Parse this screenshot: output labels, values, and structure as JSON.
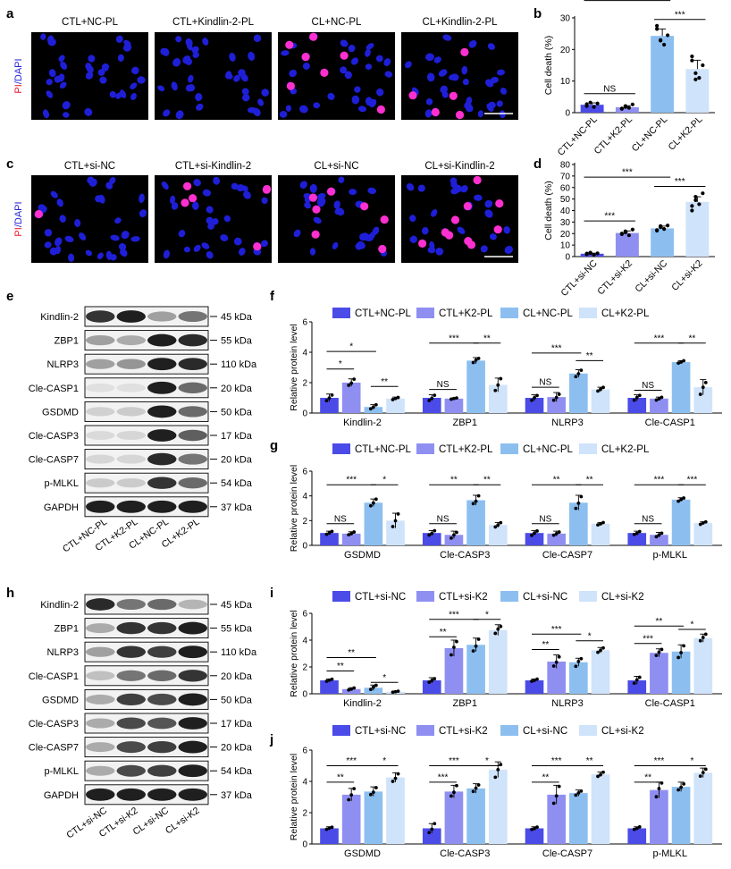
{
  "panel_letters": [
    "a",
    "b",
    "c",
    "d",
    "e",
    "f",
    "g",
    "h",
    "i",
    "j"
  ],
  "units": {
    "kda": "kDa"
  },
  "colors": {
    "ctl_nc": "#4b4be8",
    "ctl_k2": "#8f8ff2",
    "cl_nc": "#8cbff0",
    "cl_k2": "#cfe3fa",
    "nucleus": "#1f1fd8",
    "pi": "#ff30d0",
    "micro_bg": "#000000",
    "scale_bar": "#ffffff",
    "band": "#1a1a1a"
  },
  "micro_a": {
    "titles": [
      "CTL+NC-PL",
      "CTL+Kindlin-2-PL",
      "CL+NC-PL",
      "CL+Kindlin-2-PL"
    ],
    "stain_pi": "PI",
    "stain_sep": "/",
    "stain_dapi": "DAPI",
    "pi_counts": [
      0,
      0,
      7,
      5
    ]
  },
  "micro_c": {
    "titles": [
      "CTL+si-NC",
      "CTL+si-Kindlin-2",
      "CL+si-NC",
      "CL+si-Kindlin-2"
    ],
    "stain_pi": "PI",
    "stain_sep": "/",
    "stain_dapi": "DAPI",
    "pi_counts": [
      1,
      6,
      7,
      10
    ]
  },
  "blot_e": {
    "proteins": [
      "Kindlin-2",
      "ZBP1",
      "NLRP3",
      "Cle-CASP1",
      "GSDMD",
      "Cle-CASP3",
      "Cle-CASP7",
      "p-MLKL",
      "GAPDH"
    ],
    "sizes": [
      "45",
      "55",
      "110",
      "20",
      "50",
      "17",
      "20",
      "54",
      "37"
    ],
    "lanes": [
      "CTL+NC-PL",
      "CTL+K2-PL",
      "CL+NC-PL",
      "CL+K2-PL"
    ],
    "intensity": [
      [
        0.85,
        0.95,
        0.35,
        0.55
      ],
      [
        0.35,
        0.3,
        0.95,
        0.9
      ],
      [
        0.35,
        0.4,
        0.95,
        0.9
      ],
      [
        0.05,
        0.05,
        0.95,
        0.6
      ],
      [
        0.12,
        0.15,
        0.95,
        0.6
      ],
      [
        0.08,
        0.1,
        0.95,
        0.65
      ],
      [
        0.1,
        0.1,
        0.9,
        0.55
      ],
      [
        0.15,
        0.15,
        0.85,
        0.6
      ],
      [
        0.95,
        0.95,
        0.95,
        0.95
      ]
    ]
  },
  "blot_h": {
    "proteins": [
      "Kindlin-2",
      "ZBP1",
      "NLRP3",
      "Cle-CASP1",
      "GSDMD",
      "Cle-CASP3",
      "Cle-CASP7",
      "p-MLKL",
      "GAPDH"
    ],
    "sizes": [
      "45",
      "55",
      "110",
      "20",
      "50",
      "17",
      "20",
      "54",
      "37"
    ],
    "lanes": [
      "CTL+si-NC",
      "CTL+si-K2",
      "CL+si-NC",
      "CL+si-K2"
    ],
    "intensity": [
      [
        0.9,
        0.55,
        0.6,
        0.25
      ],
      [
        0.3,
        0.85,
        0.85,
        0.95
      ],
      [
        0.35,
        0.85,
        0.8,
        0.95
      ],
      [
        0.2,
        0.55,
        0.6,
        0.85
      ],
      [
        0.3,
        0.8,
        0.75,
        0.95
      ],
      [
        0.3,
        0.75,
        0.7,
        0.95
      ],
      [
        0.3,
        0.75,
        0.8,
        0.95
      ],
      [
        0.3,
        0.75,
        0.8,
        0.95
      ],
      [
        0.95,
        0.95,
        0.95,
        0.95
      ]
    ]
  },
  "chart_data": [
    {
      "panel": "b",
      "type": "bar",
      "ylabel": "Cell death (%)",
      "ylim": [
        0,
        30
      ],
      "yticks": [
        0,
        10,
        20,
        30
      ],
      "categories": [
        "CTL+NC-PL",
        "CTL+K2-PL",
        "CL+NC-PL",
        "CL+K2-PL"
      ],
      "values": [
        2.5,
        1.7,
        24.3,
        13.8
      ],
      "errors": [
        0.6,
        0.5,
        2.2,
        2.8
      ],
      "points": [
        [
          2.1,
          3.2,
          1.8,
          2.9,
          2.7
        ],
        [
          1.3,
          2.1,
          1.5,
          2.6,
          1.2,
          1.8
        ],
        [
          26.5,
          23.0,
          21.5,
          24.5,
          27.5,
          22.8
        ],
        [
          16.5,
          12.5,
          11.0,
          15.0,
          17.8,
          10.5
        ]
      ],
      "annotations": [
        {
          "from": 0,
          "to": 1,
          "text": "NS",
          "level": 6
        },
        {
          "from": 0,
          "to": 2,
          "text": "***",
          "level": 35.5
        },
        {
          "from": 2,
          "to": 3,
          "text": "***",
          "level": 29.5
        }
      ]
    },
    {
      "panel": "d",
      "type": "bar",
      "ylabel": "Cell death (%)",
      "ylim": [
        0,
        80
      ],
      "yticks": [
        0,
        10,
        20,
        30,
        40,
        50,
        60,
        70,
        80
      ],
      "categories": [
        "CTL+si-NC",
        "CTL+si-K2",
        "CL+si-NC",
        "CL+si-K2"
      ],
      "values": [
        2.5,
        20.5,
        24.5,
        47.5
      ],
      "errors": [
        0.5,
        1.8,
        2.0,
        4.5
      ],
      "points": [
        [
          2.0,
          3.0,
          1.5,
          2.8,
          2.6,
          3.4
        ],
        [
          20.0,
          22.0,
          18.5,
          23.5,
          19.5,
          21.0
        ],
        [
          22.5,
          26.5,
          24.0,
          27.0,
          23.0,
          25.5
        ],
        [
          40.0,
          52.0,
          45.5,
          55.0,
          44.0,
          49.0
        ]
      ],
      "annotations": [
        {
          "from": 0,
          "to": 1,
          "text": "***",
          "level": 31
        },
        {
          "from": 0,
          "to": 2,
          "text": "***",
          "level": 69
        },
        {
          "from": 2,
          "to": 3,
          "text": "***",
          "level": 61
        }
      ]
    },
    {
      "panel": "f",
      "type": "bar",
      "ylabel": "Relative protein level",
      "ylim": [
        0,
        6
      ],
      "yticks": [
        0,
        2,
        4,
        6
      ],
      "legend": [
        "CTL+NC-PL",
        "CTL+K2-PL",
        "CL+NC-PL",
        "CL+K2-PL"
      ],
      "groups": [
        "Kindlin-2",
        "ZBP1",
        "NLRP3",
        "Cle-CASP1"
      ],
      "values": [
        [
          1.0,
          2.0,
          0.4,
          0.95
        ],
        [
          1.0,
          0.95,
          3.45,
          1.85
        ],
        [
          1.0,
          1.05,
          2.6,
          1.55
        ],
        [
          1.0,
          0.95,
          3.35,
          1.7
        ]
      ],
      "errors": [
        [
          0.25,
          0.25,
          0.15,
          0.1
        ],
        [
          0.2,
          0.05,
          0.2,
          0.45
        ],
        [
          0.2,
          0.3,
          0.25,
          0.15
        ],
        [
          0.2,
          0.1,
          0.1,
          0.5
        ]
      ],
      "annotations": [
        {
          "group": 0,
          "from": 0,
          "to": 2,
          "text": "*",
          "level": 4.05
        },
        {
          "group": 0,
          "from": 0,
          "to": 1,
          "text": "*",
          "level": 2.9
        },
        {
          "group": 0,
          "from": 2,
          "to": 3,
          "text": "**",
          "level": 1.75
        },
        {
          "group": 1,
          "from": 0,
          "to": 1,
          "text": "NS",
          "level": 1.55
        },
        {
          "group": 1,
          "from": 0,
          "to": 2,
          "text": "***",
          "level": 4.6
        },
        {
          "group": 1,
          "from": 2,
          "to": 3,
          "text": "**",
          "level": 4.6
        },
        {
          "group": 2,
          "from": 0,
          "to": 1,
          "text": "NS",
          "level": 1.7
        },
        {
          "group": 2,
          "from": 0,
          "to": 2,
          "text": "***",
          "level": 3.95
        },
        {
          "group": 2,
          "from": 2,
          "to": 3,
          "text": "**",
          "level": 3.45
        },
        {
          "group": 3,
          "from": 0,
          "to": 1,
          "text": "NS",
          "level": 1.5
        },
        {
          "group": 3,
          "from": 0,
          "to": 2,
          "text": "***",
          "level": 4.6
        },
        {
          "group": 3,
          "from": 2,
          "to": 3,
          "text": "**",
          "level": 4.6
        }
      ]
    },
    {
      "panel": "g",
      "type": "bar",
      "ylabel": "Relative protein level",
      "ylim": [
        0,
        6
      ],
      "yticks": [
        0,
        2,
        4,
        6
      ],
      "legend": [
        "CTL+NC-PL",
        "CTL+K2-PL",
        "CL+NC-PL",
        "CL+K2-PL"
      ],
      "groups": [
        "GSDMD",
        "Cle-CASP3",
        "Cle-CASP7",
        "p-MLKL"
      ],
      "values": [
        [
          1.0,
          0.95,
          3.45,
          2.0
        ],
        [
          1.0,
          0.85,
          3.65,
          1.65
        ],
        [
          1.0,
          0.95,
          3.45,
          1.75
        ],
        [
          1.0,
          0.85,
          3.7,
          1.8
        ]
      ],
      "errors": [
        [
          0.15,
          0.15,
          0.3,
          0.6
        ],
        [
          0.2,
          0.3,
          0.4,
          0.2
        ],
        [
          0.2,
          0.2,
          0.6,
          0.1
        ],
        [
          0.15,
          0.2,
          0.15,
          0.1
        ]
      ],
      "annotations": [
        {
          "group": 0,
          "from": 0,
          "to": 1,
          "text": "NS",
          "level": 1.75
        },
        {
          "group": 0,
          "from": 0,
          "to": 2,
          "text": "***",
          "level": 4.9
        },
        {
          "group": 0,
          "from": 2,
          "to": 3,
          "text": "*",
          "level": 4.9
        },
        {
          "group": 1,
          "from": 0,
          "to": 1,
          "text": "NS",
          "level": 1.75
        },
        {
          "group": 1,
          "from": 0,
          "to": 2,
          "text": "**",
          "level": 4.9
        },
        {
          "group": 1,
          "from": 2,
          "to": 3,
          "text": "**",
          "level": 4.9
        },
        {
          "group": 2,
          "from": 0,
          "to": 1,
          "text": "NS",
          "level": 1.75
        },
        {
          "group": 2,
          "from": 0,
          "to": 2,
          "text": "**",
          "level": 4.9
        },
        {
          "group": 2,
          "from": 2,
          "to": 3,
          "text": "**",
          "level": 4.9
        },
        {
          "group": 3,
          "from": 0,
          "to": 1,
          "text": "NS",
          "level": 1.75
        },
        {
          "group": 3,
          "from": 0,
          "to": 2,
          "text": "***",
          "level": 4.9
        },
        {
          "group": 3,
          "from": 2,
          "to": 3,
          "text": "***",
          "level": 4.9
        }
      ]
    },
    {
      "panel": "i",
      "type": "bar",
      "ylabel": "Relative protein level",
      "ylim": [
        0,
        6
      ],
      "yticks": [
        0,
        2,
        4,
        6
      ],
      "legend": [
        "CTL+si-NC",
        "CTL+si-K2",
        "CL+si-NC",
        "CL+si-K2"
      ],
      "groups": [
        "Kindlin-2",
        "ZBP1",
        "NLRP3",
        "Cle-CASP1"
      ],
      "values": [
        [
          1.0,
          0.35,
          0.45,
          0.15
        ],
        [
          1.0,
          3.4,
          3.65,
          4.75
        ],
        [
          1.0,
          2.4,
          2.35,
          3.25
        ],
        [
          1.0,
          3.05,
          3.15,
          4.15
        ]
      ],
      "errors": [
        [
          0.1,
          0.1,
          0.2,
          0.05
        ],
        [
          0.2,
          0.6,
          0.5,
          0.4
        ],
        [
          0.1,
          0.5,
          0.3,
          0.2
        ],
        [
          0.3,
          0.3,
          0.5,
          0.3
        ]
      ],
      "annotations": [
        {
          "group": 0,
          "from": 0,
          "to": 2,
          "text": "**",
          "level": 2.7
        },
        {
          "group": 0,
          "from": 0,
          "to": 1,
          "text": "**",
          "level": 1.7
        },
        {
          "group": 0,
          "from": 2,
          "to": 3,
          "text": "*",
          "level": 0.85
        },
        {
          "group": 1,
          "from": 0,
          "to": 1,
          "text": "**",
          "level": 4.25
        },
        {
          "group": 1,
          "from": 0,
          "to": 2,
          "text": "***",
          "level": 5.55
        },
        {
          "group": 1,
          "from": 2,
          "to": 3,
          "text": "*",
          "level": 5.55
        },
        {
          "group": 2,
          "from": 0,
          "to": 1,
          "text": "**",
          "level": 3.3
        },
        {
          "group": 2,
          "from": 0,
          "to": 2,
          "text": "***",
          "level": 4.45
        },
        {
          "group": 2,
          "from": 2,
          "to": 3,
          "text": "*",
          "level": 3.95
        },
        {
          "group": 3,
          "from": 0,
          "to": 1,
          "text": "***",
          "level": 3.75
        },
        {
          "group": 3,
          "from": 0,
          "to": 2,
          "text": "**",
          "level": 5.05
        },
        {
          "group": 3,
          "from": 2,
          "to": 3,
          "text": "*",
          "level": 4.8
        }
      ]
    },
    {
      "panel": "j",
      "type": "bar",
      "ylabel": "Relative protein level",
      "ylim": [
        0,
        6
      ],
      "yticks": [
        0,
        2,
        4,
        6
      ],
      "legend": [
        "CTL+si-NC",
        "CTL+si-K2",
        "CL+si-NC",
        "CL+si-K2"
      ],
      "groups": [
        "GSDMD",
        "Cle-CASP3",
        "Cle-CASP7",
        "p-MLKL"
      ],
      "values": [
        [
          1.0,
          3.15,
          3.35,
          4.25
        ],
        [
          1.0,
          3.35,
          3.55,
          4.75
        ],
        [
          1.0,
          3.15,
          3.25,
          4.45
        ],
        [
          1.0,
          3.45,
          3.65,
          4.55
        ]
      ],
      "errors": [
        [
          0.1,
          0.4,
          0.3,
          0.3
        ],
        [
          0.3,
          0.4,
          0.3,
          0.5
        ],
        [
          0.1,
          0.6,
          0.2,
          0.15
        ],
        [
          0.1,
          0.5,
          0.3,
          0.3
        ]
      ],
      "annotations": [
        {
          "group": 0,
          "from": 0,
          "to": 1,
          "text": "**",
          "level": 3.95
        },
        {
          "group": 0,
          "from": 0,
          "to": 2,
          "text": "***",
          "level": 5.0
        },
        {
          "group": 0,
          "from": 2,
          "to": 3,
          "text": "*",
          "level": 5.0
        },
        {
          "group": 1,
          "from": 0,
          "to": 1,
          "text": "***",
          "level": 3.95
        },
        {
          "group": 1,
          "from": 0,
          "to": 2,
          "text": "***",
          "level": 5.0
        },
        {
          "group": 1,
          "from": 2,
          "to": 3,
          "text": "*",
          "level": 5.0
        },
        {
          "group": 2,
          "from": 0,
          "to": 1,
          "text": "**",
          "level": 3.95
        },
        {
          "group": 2,
          "from": 0,
          "to": 2,
          "text": "***",
          "level": 5.0
        },
        {
          "group": 2,
          "from": 2,
          "to": 3,
          "text": "**",
          "level": 5.0
        },
        {
          "group": 3,
          "from": 0,
          "to": 1,
          "text": "**",
          "level": 3.95
        },
        {
          "group": 3,
          "from": 0,
          "to": 2,
          "text": "***",
          "level": 5.0
        },
        {
          "group": 3,
          "from": 2,
          "to": 3,
          "text": "*",
          "level": 5.0
        }
      ]
    }
  ]
}
